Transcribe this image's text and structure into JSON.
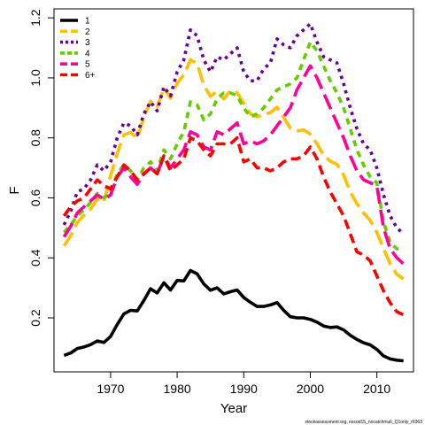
{
  "chart_data": {
    "type": "line",
    "title": "",
    "xlabel": "Year",
    "ylabel": "F",
    "xlim": [
      1961.5,
      2015.5
    ],
    "ylim": [
      0.02,
      1.23
    ],
    "x_ticks": [
      1970,
      1980,
      1990,
      2000,
      2010
    ],
    "y_ticks": [
      0.2,
      0.4,
      0.6,
      0.8,
      1.0,
      1.2
    ],
    "grid": false,
    "legend_position": "top-left",
    "footnote": "stockassessment.org, nscod15_nocatchmult_Q1only_r6363",
    "x": [
      1963,
      1964,
      1965,
      1966,
      1967,
      1968,
      1969,
      1970,
      1971,
      1972,
      1973,
      1974,
      1975,
      1976,
      1977,
      1978,
      1979,
      1980,
      1981,
      1982,
      1983,
      1984,
      1985,
      1986,
      1987,
      1988,
      1989,
      1990,
      1991,
      1992,
      1993,
      1994,
      1995,
      1996,
      1997,
      1998,
      1999,
      2000,
      2001,
      2002,
      2003,
      2004,
      2005,
      2006,
      2007,
      2008,
      2009,
      2010,
      2011,
      2012,
      2013,
      2014
    ],
    "series": [
      {
        "name": "1",
        "color": "#000000",
        "dash": "solid",
        "values": [
          0.075,
          0.083,
          0.098,
          0.103,
          0.111,
          0.123,
          0.118,
          0.138,
          0.178,
          0.213,
          0.225,
          0.223,
          0.258,
          0.297,
          0.283,
          0.317,
          0.293,
          0.325,
          0.323,
          0.358,
          0.347,
          0.313,
          0.292,
          0.3,
          0.28,
          0.287,
          0.293,
          0.268,
          0.252,
          0.238,
          0.238,
          0.243,
          0.251,
          0.225,
          0.204,
          0.2,
          0.2,
          0.195,
          0.186,
          0.173,
          0.168,
          0.17,
          0.16,
          0.142,
          0.128,
          0.117,
          0.11,
          0.095,
          0.073,
          0.063,
          0.059,
          0.057
        ]
      },
      {
        "name": "2",
        "color": "#FFC000",
        "dash": "long",
        "values": [
          0.44,
          0.473,
          0.518,
          0.542,
          0.563,
          0.596,
          0.586,
          0.675,
          0.748,
          0.81,
          0.818,
          0.798,
          0.868,
          0.922,
          0.903,
          0.967,
          0.932,
          0.982,
          1.01,
          1.06,
          1.048,
          0.975,
          0.938,
          0.956,
          0.93,
          0.958,
          0.95,
          0.915,
          0.88,
          0.87,
          0.878,
          0.884,
          0.902,
          0.868,
          0.832,
          0.823,
          0.827,
          0.812,
          0.78,
          0.742,
          0.722,
          0.712,
          0.676,
          0.62,
          0.58,
          0.55,
          0.525,
          0.485,
          0.43,
          0.38,
          0.345,
          0.33
        ]
      },
      {
        "name": "3",
        "color": "#660099",
        "dash": "dotted",
        "values": [
          0.51,
          0.555,
          0.62,
          0.63,
          0.66,
          0.71,
          0.69,
          0.72,
          0.8,
          0.85,
          0.84,
          0.81,
          0.88,
          0.92,
          0.89,
          0.97,
          0.94,
          1.02,
          1.06,
          1.16,
          1.14,
          1.06,
          1.02,
          1.07,
          1.06,
          1.08,
          1.1,
          1.02,
          0.99,
          0.99,
          1.03,
          1.05,
          1.13,
          1.11,
          1.1,
          1.14,
          1.16,
          1.18,
          1.12,
          1.07,
          1.06,
          1.05,
          0.98,
          0.9,
          0.83,
          0.78,
          0.76,
          0.7,
          0.61,
          0.54,
          0.5,
          0.48
        ]
      },
      {
        "name": "4",
        "color": "#66CC00",
        "dash": "short",
        "values": [
          0.485,
          0.51,
          0.54,
          0.56,
          0.585,
          0.615,
          0.6,
          0.62,
          0.68,
          0.71,
          0.69,
          0.66,
          0.7,
          0.72,
          0.69,
          0.76,
          0.73,
          0.78,
          0.82,
          0.92,
          0.91,
          0.86,
          0.88,
          0.93,
          0.95,
          0.95,
          0.94,
          0.9,
          0.87,
          0.88,
          0.9,
          0.93,
          0.96,
          0.97,
          0.98,
          1.0,
          1.06,
          1.12,
          1.09,
          1.04,
          0.99,
          0.95,
          0.9,
          0.83,
          0.76,
          0.71,
          0.67,
          0.65,
          0.52,
          0.45,
          0.43,
          0.43
        ]
      },
      {
        "name": "5",
        "color": "#FF0099",
        "dash": "long",
        "values": [
          0.47,
          0.505,
          0.55,
          0.57,
          0.59,
          0.61,
          0.595,
          0.61,
          0.67,
          0.7,
          0.67,
          0.645,
          0.68,
          0.7,
          0.68,
          0.74,
          0.7,
          0.73,
          0.76,
          0.82,
          0.81,
          0.77,
          0.76,
          0.82,
          0.81,
          0.83,
          0.85,
          0.78,
          0.79,
          0.78,
          0.79,
          0.81,
          0.84,
          0.87,
          0.9,
          0.96,
          1.0,
          1.04,
          1.0,
          0.95,
          0.9,
          0.85,
          0.8,
          0.74,
          0.69,
          0.66,
          0.65,
          0.64,
          0.5,
          0.43,
          0.4,
          0.38
        ]
      },
      {
        "name": "6+",
        "color": "#FF0000",
        "dash": "medium",
        "values": [
          0.54,
          0.57,
          0.59,
          0.6,
          0.63,
          0.66,
          0.64,
          0.63,
          0.67,
          0.71,
          0.69,
          0.66,
          0.68,
          0.7,
          0.68,
          0.74,
          0.69,
          0.71,
          0.73,
          0.8,
          0.79,
          0.76,
          0.74,
          0.78,
          0.78,
          0.78,
          0.8,
          0.72,
          0.73,
          0.7,
          0.7,
          0.69,
          0.7,
          0.72,
          0.73,
          0.73,
          0.74,
          0.77,
          0.73,
          0.67,
          0.62,
          0.58,
          0.54,
          0.48,
          0.42,
          0.41,
          0.39,
          0.34,
          0.29,
          0.25,
          0.22,
          0.21
        ]
      }
    ]
  }
}
